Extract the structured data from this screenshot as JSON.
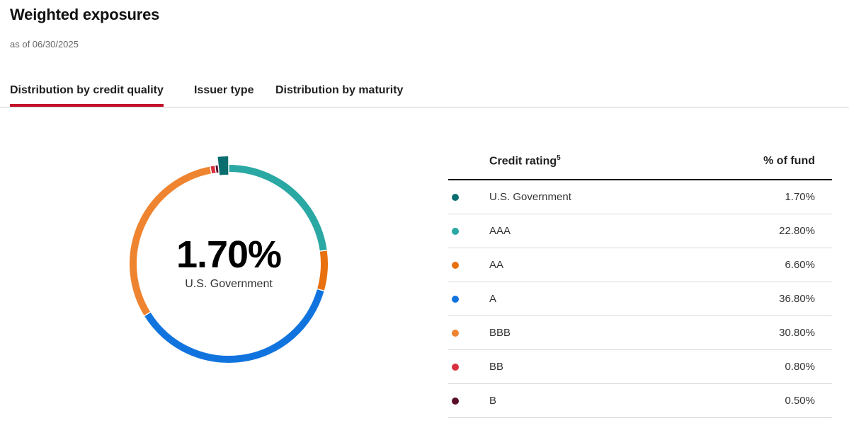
{
  "header": {
    "title": "Weighted exposures",
    "as_of": "as of 06/30/2025"
  },
  "tabs": [
    {
      "label": "Distribution by credit quality",
      "active": true
    },
    {
      "label": "Issuer type",
      "active": false
    },
    {
      "label": "Distribution by maturity",
      "active": false
    }
  ],
  "donut": {
    "center_value": "1.70%",
    "center_label": "U.S. Government",
    "highlighted_index": 0
  },
  "table": {
    "col_rating": "Credit rating",
    "col_rating_sup": "5",
    "col_pct": "% of fund"
  },
  "chart_data": {
    "type": "pie",
    "style": "donut",
    "categories": [
      "U.S. Government",
      "AAA",
      "AA",
      "A",
      "BBB",
      "BB",
      "B"
    ],
    "values": [
      1.7,
      22.8,
      6.6,
      36.8,
      30.8,
      0.8,
      0.5
    ],
    "value_labels": [
      "1.70%",
      "22.80%",
      "6.60%",
      "36.80%",
      "30.80%",
      "0.80%",
      "0.50%"
    ],
    "colors": [
      "#0b6e6e",
      "#2aa8a3",
      "#e8700f",
      "#1174de",
      "#ef8430",
      "#d93040",
      "#5a0f28"
    ]
  }
}
